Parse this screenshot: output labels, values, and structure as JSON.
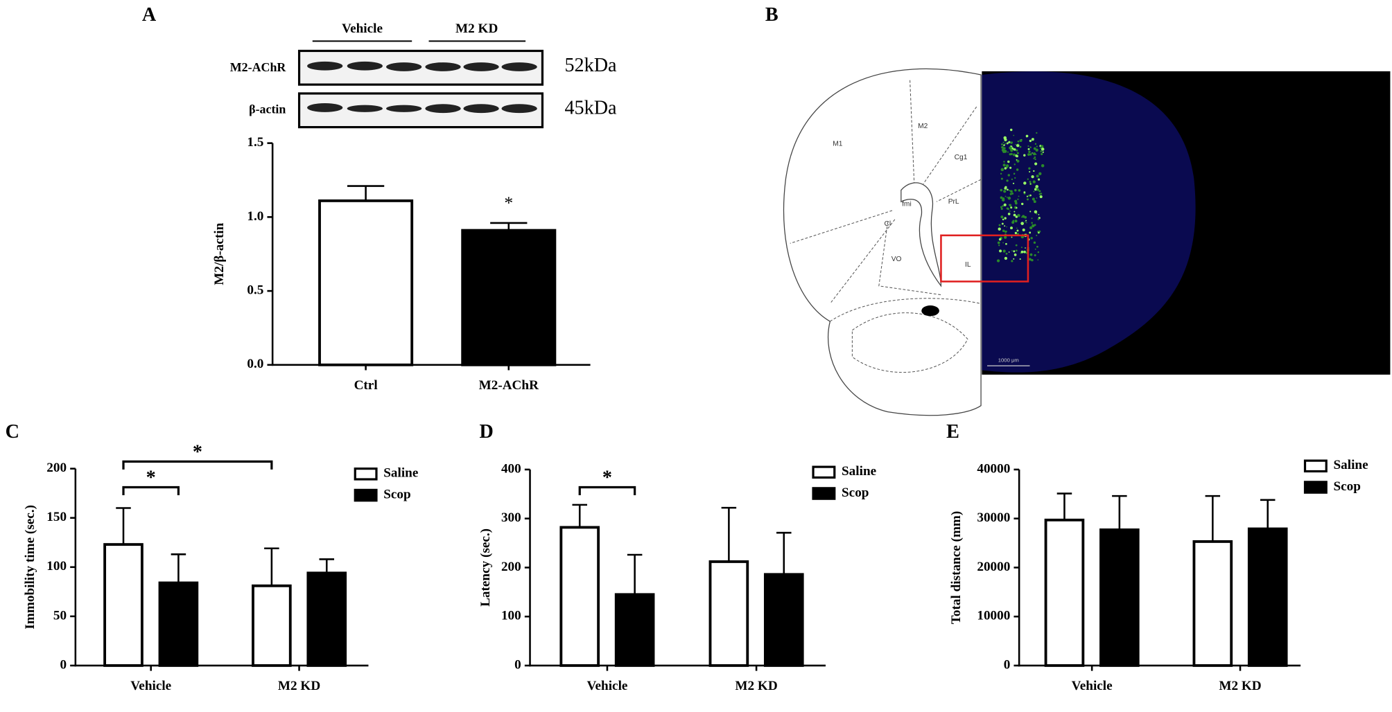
{
  "panel_labels": [
    "A",
    "B",
    "C",
    "D",
    "E"
  ],
  "blot": {
    "groups": [
      "Vehicle",
      "M2 KD"
    ],
    "rows": [
      "M2-AChR",
      "β-actin"
    ],
    "sizes": [
      "52kDa",
      "45kDa"
    ]
  },
  "atlas": {
    "regions": [
      "M1",
      "M2",
      "Cg1",
      "PrL",
      "fmi",
      "Cl",
      "VO",
      "IL"
    ],
    "scale_bar": "1000 μm"
  },
  "chart_data": [
    {
      "type": "bar",
      "ylabel": "M2/β-actin",
      "categories": [
        "Ctrl",
        "M2-AChR"
      ],
      "values": [
        1.11,
        0.91
      ],
      "errors": [
        0.1,
        0.05
      ],
      "colors": [
        "#ffffff",
        "#000000"
      ],
      "ylim": [
        0,
        1.5
      ],
      "yticks": [
        {
          "value": 0,
          "label": "0.0"
        },
        0.5,
        {
          "value": 1,
          "label": "1.0"
        },
        1.5
      ],
      "annotations": [
        {
          "text": "*"
        }
      ]
    },
    {
      "type": "grouped-bar",
      "ylabel": "Immobility time (sec.)",
      "categories": [
        "Vehicle",
        "M2 KD"
      ],
      "series": [
        {
          "name": "Saline",
          "color": "#ffffff",
          "values": [
            123,
            81
          ],
          "errors": [
            37,
            38
          ]
        },
        {
          "name": "Scop",
          "color": "#000000",
          "values": [
            84,
            94
          ],
          "errors": [
            29,
            14
          ]
        }
      ],
      "ylim": [
        0,
        200
      ],
      "yticks": [
        0,
        50,
        100,
        150,
        200
      ],
      "annotations": [
        {
          "text": "*"
        },
        {
          "text": "*"
        }
      ]
    },
    {
      "type": "grouped-bar",
      "ylabel": "Latency (sec.)",
      "categories": [
        "Vehicle",
        "M2 KD"
      ],
      "series": [
        {
          "name": "Saline",
          "color": "#ffffff",
          "values": [
            282,
            212
          ],
          "errors": [
            46,
            110
          ]
        },
        {
          "name": "Scop",
          "color": "#000000",
          "values": [
            145,
            186
          ],
          "errors": [
            81,
            85
          ]
        }
      ],
      "ylim": [
        0,
        400
      ],
      "yticks": [
        0,
        100,
        200,
        300,
        400
      ],
      "annotations": [
        {
          "text": "*"
        }
      ]
    },
    {
      "type": "grouped-bar",
      "ylabel": "Total distance (mm)",
      "categories": [
        "Vehicle",
        "M2 KD"
      ],
      "series": [
        {
          "name": "Saline",
          "color": "#ffffff",
          "values": [
            29700,
            25300
          ],
          "errors": [
            5400,
            9300
          ]
        },
        {
          "name": "Scop",
          "color": "#000000",
          "values": [
            27700,
            27900
          ],
          "errors": [
            6900,
            5900
          ]
        }
      ],
      "ylim": [
        0,
        40000
      ],
      "yticks": [
        0,
        10000,
        20000,
        30000,
        40000
      ],
      "annotations": []
    }
  ]
}
